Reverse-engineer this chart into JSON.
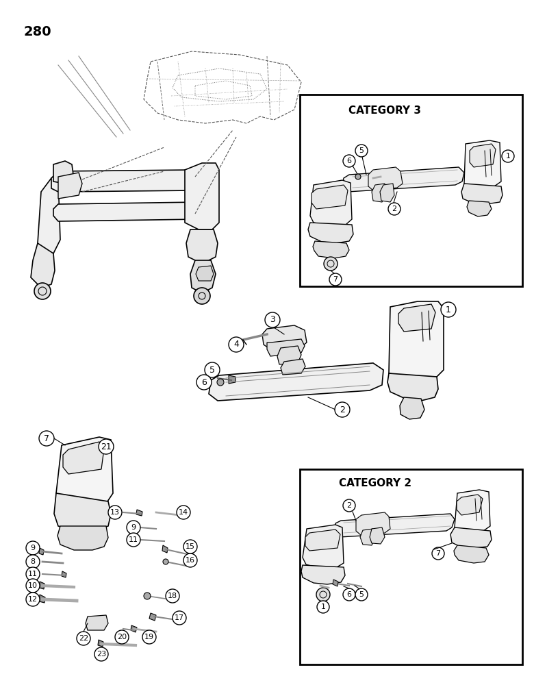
{
  "page_number": "280",
  "background_color": "#ffffff",
  "line_color": "#000000",
  "category3_label": "CATEGORY 3",
  "category2_label": "CATEGORY 2",
  "fig_width": 7.8,
  "fig_height": 10.0,
  "dpi": 100
}
